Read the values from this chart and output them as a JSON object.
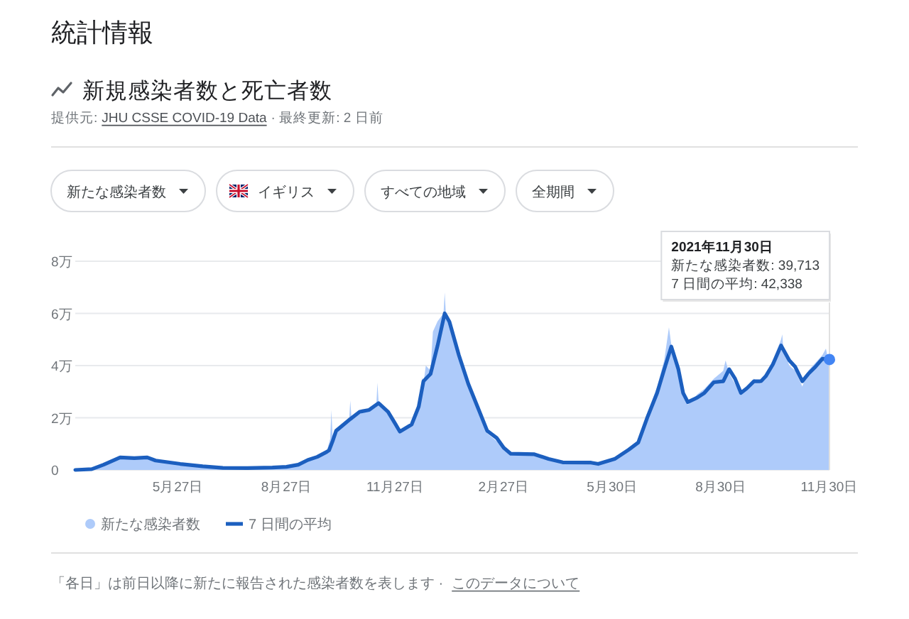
{
  "chart_data": {
    "type": "area",
    "title": "統計情報",
    "subtitle": "新規感染者数と死亡者数",
    "annotations": [
      "提供元:",
      "JHU CSSE COVID-19 Data",
      "· 最終更新: 2 日前",
      "新たな感染者数",
      "イギリス",
      "すべての地域",
      "全期間",
      "2021年11月30日",
      "新たな感染者数: 39,713",
      "7 日間の平均: 42,338",
      "「各日」は前日以降に新たに報告された感染者数を表します ·",
      "このデータについて"
    ],
    "xlim": [
      "2020-03-01",
      "2021-11-30"
    ],
    "xticks": [
      {
        "value": "2020-05-27",
        "label": "5月27日"
      },
      {
        "value": "2020-08-27",
        "label": "8月27日"
      },
      {
        "value": "2020-11-27",
        "label": "11月27日"
      },
      {
        "value": "2021-02-27",
        "label": "2月27日"
      },
      {
        "value": "2021-05-30",
        "label": "5月30日"
      },
      {
        "value": "2021-08-30",
        "label": "8月30日"
      },
      {
        "value": "2021-11-30",
        "label": "11月30日"
      }
    ],
    "ylim": [
      0,
      8
    ],
    "yticks": [
      0,
      {
        "value": 2,
        "label": "2万"
      },
      {
        "value": 4,
        "label": "4万"
      },
      {
        "value": 6,
        "label": "6万"
      },
      {
        "value": 8,
        "label": "8万"
      }
    ],
    "grid": "y",
    "legend": "bottom",
    "series": [
      {
        "name": "新たな感染者数",
        "color": "#aecbfa",
        "x": [
          "2020-03-01",
          "2020-03-15",
          "2020-03-25",
          "2020-04-08",
          "2020-04-20",
          "2020-05-01",
          "2020-05-08",
          "2020-05-29",
          "2020-06-17",
          "2020-07-04",
          "2020-07-25",
          "2020-08-15",
          "2020-08-27",
          "2020-09-06",
          "2020-09-14",
          "2020-09-22",
          "2020-09-30",
          "2020-10-03",
          "2020-10-04",
          "2020-10-05",
          "2020-10-08",
          "2020-10-19",
          "2020-10-20",
          "2020-10-21",
          "2020-10-28",
          "2020-11-05",
          "2020-11-11",
          "2020-11-12",
          "2020-11-13",
          "2020-11-21",
          "2020-11-27",
          "2020-12-01",
          "2020-12-11",
          "2020-12-17",
          "2020-12-20",
          "2020-12-21",
          "2020-12-23",
          "2020-12-27",
          "2020-12-29",
          "2021-01-02",
          "2021-01-07",
          "2021-01-08",
          "2021-01-09",
          "2021-01-12",
          "2021-01-20",
          "2021-01-28",
          "2021-02-05",
          "2021-02-13",
          "2021-02-21",
          "2021-02-27",
          "2021-03-05",
          "2021-03-25",
          "2021-04-06",
          "2021-04-18",
          "2021-05-12",
          "2021-05-18",
          "2021-06-01",
          "2021-06-13",
          "2021-06-21",
          "2021-06-29",
          "2021-07-07",
          "2021-07-13",
          "2021-07-17",
          "2021-07-19",
          "2021-07-25",
          "2021-07-29",
          "2021-08-02",
          "2021-08-10",
          "2021-08-16",
          "2021-08-24",
          "2021-09-01",
          "2021-09-03",
          "2021-09-06",
          "2021-09-11",
          "2021-09-16",
          "2021-09-21",
          "2021-09-27",
          "2021-10-03",
          "2021-10-07",
          "2021-10-13",
          "2021-10-20",
          "2021-10-21",
          "2021-10-22",
          "2021-10-27",
          "2021-11-01",
          "2021-11-07",
          "2021-11-12",
          "2021-11-18",
          "2021-11-24",
          "2021-11-27",
          "2021-11-29",
          "2021-11-30"
        ],
        "values": [
          0,
          0.03,
          0.22,
          0.52,
          0.45,
          0.5,
          0.38,
          0.22,
          0.13,
          0.07,
          0.07,
          0.1,
          0.13,
          0.25,
          0.39,
          0.55,
          0.71,
          1.2,
          2.3,
          1.3,
          1.5,
          1.9,
          2.66,
          2.0,
          2.25,
          2.3,
          2.4,
          3.35,
          2.6,
          2.2,
          1.75,
          1.45,
          1.75,
          2.5,
          3.55,
          3.3,
          4.0,
          3.8,
          5.3,
          5.7,
          6.0,
          6.8,
          6.0,
          5.7,
          4.4,
          3.2,
          2.3,
          1.4,
          1.1,
          0.8,
          0.65,
          0.6,
          0.4,
          0.28,
          0.27,
          0.23,
          0.45,
          0.8,
          1.1,
          2.2,
          3.2,
          4.2,
          5.47,
          4.8,
          3.6,
          2.8,
          2.5,
          2.9,
          3.1,
          3.5,
          3.8,
          4.2,
          3.7,
          3.3,
          2.9,
          3.2,
          3.5,
          3.3,
          3.7,
          4.2,
          5.0,
          5.2,
          4.6,
          4.0,
          3.8,
          3.2,
          3.8,
          4.1,
          4.4,
          4.65,
          4.2,
          3.9713
        ]
      },
      {
        "name": "7 日間の平均",
        "type": "line",
        "color": "#1c5fbf",
        "x": [
          "2020-03-01",
          "2020-03-15",
          "2020-03-25",
          "2020-04-08",
          "2020-04-20",
          "2020-05-01",
          "2020-05-08",
          "2020-05-29",
          "2020-06-17",
          "2020-07-04",
          "2020-07-25",
          "2020-08-15",
          "2020-08-27",
          "2020-09-06",
          "2020-09-14",
          "2020-09-22",
          "2020-09-30",
          "2020-10-02",
          "2020-10-05",
          "2020-10-08",
          "2020-10-20",
          "2020-10-28",
          "2020-11-05",
          "2020-11-13",
          "2020-11-21",
          "2020-11-27",
          "2020-12-01",
          "2020-12-11",
          "2020-12-17",
          "2020-12-21",
          "2020-12-27",
          "2021-01-02",
          "2021-01-08",
          "2021-01-12",
          "2021-01-20",
          "2021-01-28",
          "2021-02-05",
          "2021-02-13",
          "2021-02-21",
          "2021-02-27",
          "2021-03-05",
          "2021-03-25",
          "2021-04-06",
          "2021-04-18",
          "2021-05-12",
          "2021-05-18",
          "2021-06-01",
          "2021-06-13",
          "2021-06-21",
          "2021-06-29",
          "2021-07-07",
          "2021-07-13",
          "2021-07-19",
          "2021-07-25",
          "2021-07-29",
          "2021-08-02",
          "2021-08-10",
          "2021-08-16",
          "2021-08-24",
          "2021-09-01",
          "2021-09-06",
          "2021-09-11",
          "2021-09-16",
          "2021-09-21",
          "2021-09-27",
          "2021-10-03",
          "2021-10-07",
          "2021-10-13",
          "2021-10-20",
          "2021-10-27",
          "2021-11-01",
          "2021-11-07",
          "2021-11-12",
          "2021-11-18",
          "2021-11-24",
          "2021-11-30"
        ],
        "values": [
          0,
          0.03,
          0.2,
          0.48,
          0.45,
          0.48,
          0.36,
          0.23,
          0.14,
          0.08,
          0.07,
          0.09,
          0.12,
          0.2,
          0.38,
          0.5,
          0.69,
          0.75,
          1.1,
          1.5,
          1.95,
          2.23,
          2.3,
          2.56,
          2.23,
          1.78,
          1.47,
          1.74,
          2.43,
          3.4,
          3.68,
          4.77,
          6.0,
          5.68,
          4.4,
          3.3,
          2.4,
          1.5,
          1.23,
          0.85,
          0.62,
          0.6,
          0.42,
          0.29,
          0.28,
          0.23,
          0.42,
          0.78,
          1.05,
          2.05,
          2.95,
          3.86,
          4.73,
          3.86,
          2.95,
          2.6,
          2.77,
          2.95,
          3.36,
          3.4,
          3.86,
          3.5,
          2.95,
          3.13,
          3.4,
          3.4,
          3.59,
          4.04,
          4.77,
          4.2,
          3.95,
          3.4,
          3.68,
          3.95,
          4.26,
          4.2338
        ]
      }
    ]
  }
}
